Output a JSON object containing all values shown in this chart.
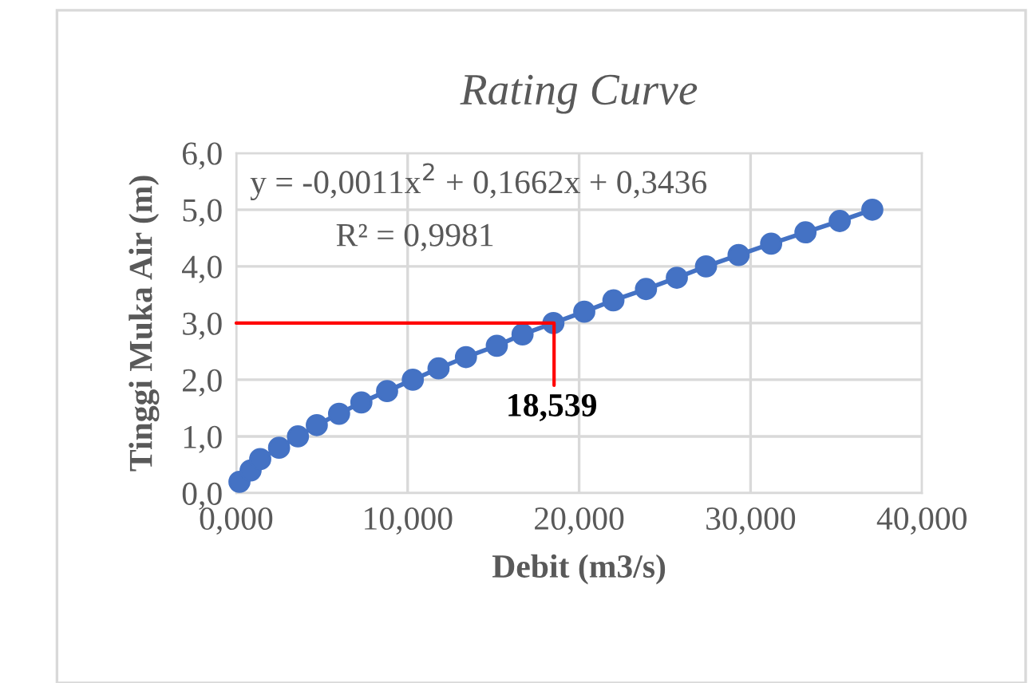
{
  "chart_data": {
    "type": "line",
    "title": "Rating Curve",
    "xlabel": "Debit (m3/s)",
    "ylabel": "Tinggi Muka Air (m)",
    "xlim": [
      0,
      40
    ],
    "ylim": [
      0,
      6
    ],
    "xticks": [
      {
        "value": 0,
        "label": "0,000"
      },
      {
        "value": 10,
        "label": "10,000"
      },
      {
        "value": 20,
        "label": "20,000"
      },
      {
        "value": 30,
        "label": "30,000"
      },
      {
        "value": 40,
        "label": "40,000"
      }
    ],
    "yticks": [
      {
        "value": 0,
        "label": "0,0"
      },
      {
        "value": 1,
        "label": "1,0"
      },
      {
        "value": 2,
        "label": "2,0"
      },
      {
        "value": 3,
        "label": "3,0"
      },
      {
        "value": 4,
        "label": "4,0"
      },
      {
        "value": 5,
        "label": "5,0"
      },
      {
        "value": 6,
        "label": "6,0"
      }
    ],
    "grid": true,
    "legend": false,
    "series": [
      {
        "marker": "circle",
        "color": "#4472c4",
        "x": [
          0.19,
          0.84,
          1.4,
          2.5,
          3.6,
          4.7,
          6.0,
          7.3,
          8.8,
          10.3,
          11.8,
          13.4,
          15.2,
          16.7,
          18.5,
          20.3,
          22.0,
          23.9,
          25.7,
          27.4,
          29.3,
          31.2,
          33.2,
          35.2,
          37.1
        ],
        "values": [
          0.2,
          0.4,
          0.6,
          0.8,
          1.0,
          1.2,
          1.4,
          1.6,
          1.8,
          2.0,
          2.2,
          2.4,
          2.6,
          2.8,
          3.0,
          3.2,
          3.4,
          3.6,
          3.8,
          4.0,
          4.2,
          4.4,
          4.6,
          4.8,
          5.0
        ]
      },
      {
        "marker": "none",
        "color": "#ff0000",
        "x": [
          0,
          18.539,
          18.539
        ],
        "values": [
          3.0,
          3.0,
          1.9
        ]
      }
    ],
    "annotations": [
      "y = -0,0011x$^{2}$ + 0,1662x + 0,3436",
      "R² = 0,9981",
      "18,539"
    ]
  }
}
